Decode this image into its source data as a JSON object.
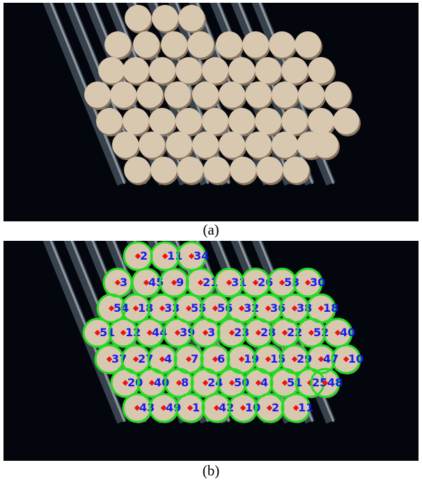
{
  "captions": {
    "a": "(a)",
    "b": "(b)"
  },
  "colors": {
    "background": "#03060c",
    "rod_face": "#d9c8b0",
    "rod_shadow": "#8a7560",
    "steel": "#9fb4c8",
    "circle": "#22dd22",
    "center": "#ee1111",
    "label": "#1a1aee"
  },
  "labels": [
    "2",
    "11",
    "34",
    "3",
    "45",
    "9",
    "21",
    "31",
    "26",
    "53",
    "30",
    "54",
    "18",
    "33",
    "55",
    "56",
    "32",
    "36",
    "38",
    "18",
    "51",
    "12",
    "44",
    "39",
    "3",
    "23",
    "28",
    "22",
    "52",
    "40",
    "37",
    "27",
    "4",
    "7",
    "6",
    "19",
    "15",
    "29",
    "47",
    "10",
    "20",
    "40",
    "8",
    "24",
    "50",
    "4",
    "51",
    "25",
    "48",
    "43",
    "49",
    "1",
    "42",
    "10"
  ]
}
